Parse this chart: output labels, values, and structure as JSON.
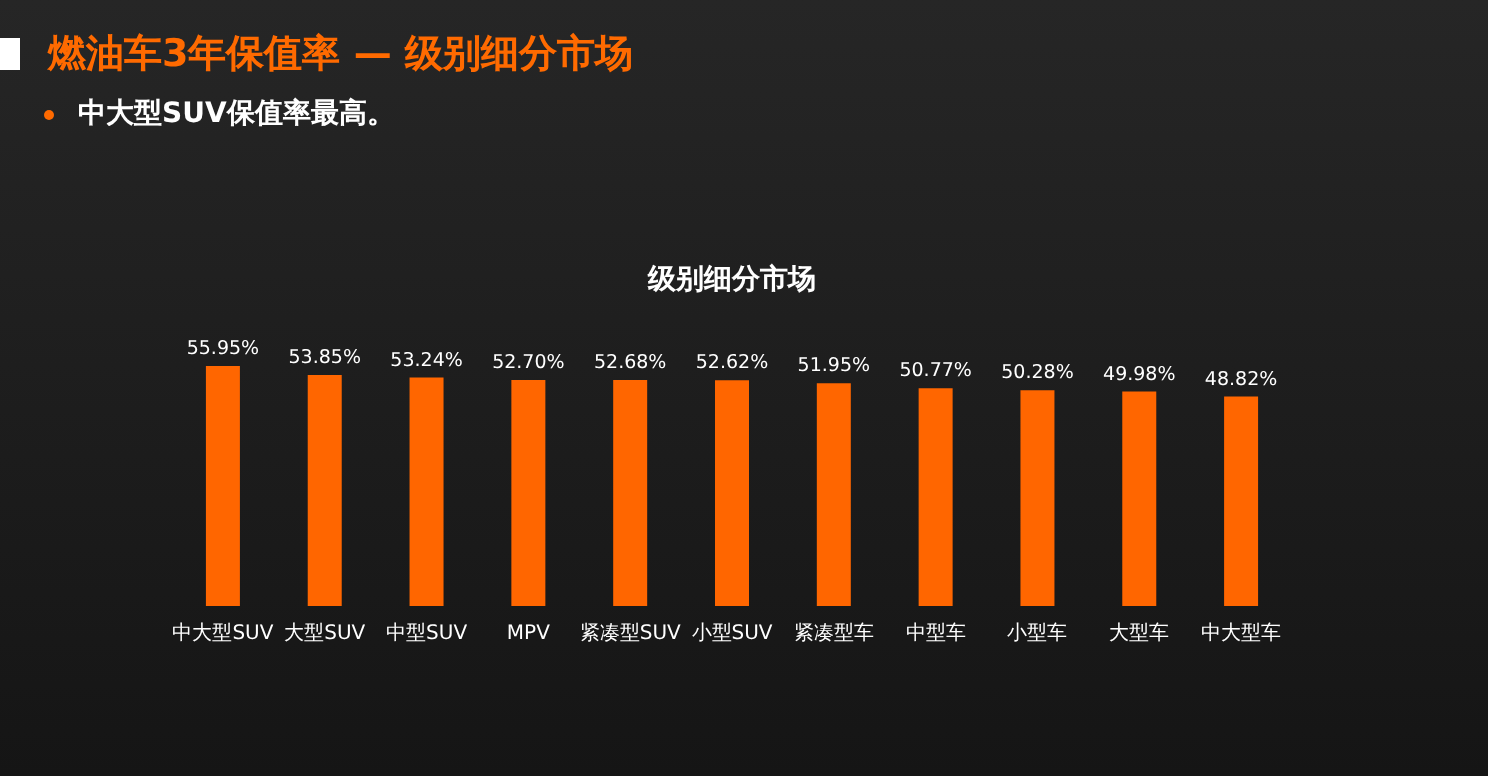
{
  "chart_data": {
    "type": "bar",
    "title": "燃油车3年保值率 — 级别细分市场",
    "subtitle": "中大型SUV保值率最高。",
    "categories": [
      "中大型SUV",
      "大型SUV",
      "中型SUV",
      "MPV",
      "紧凑型SUV",
      "小型SUV",
      "紧凑型车",
      "中型车",
      "小型车",
      "大型车",
      "中大型车"
    ],
    "values": [
      55.95,
      53.85,
      53.24,
      52.7,
      52.68,
      52.62,
      51.95,
      50.77,
      50.28,
      49.98,
      48.82
    ],
    "value_labels": [
      "55.95%",
      "53.85%",
      "53.24%",
      "52.70%",
      "52.68%",
      "52.62%",
      "51.95%",
      "50.77%",
      "50.28%",
      "49.98%",
      "48.82%"
    ],
    "annotations": [
      "级别细分市场"
    ],
    "color": "#ff6600",
    "tick_labels": "x",
    "grid": false
  }
}
